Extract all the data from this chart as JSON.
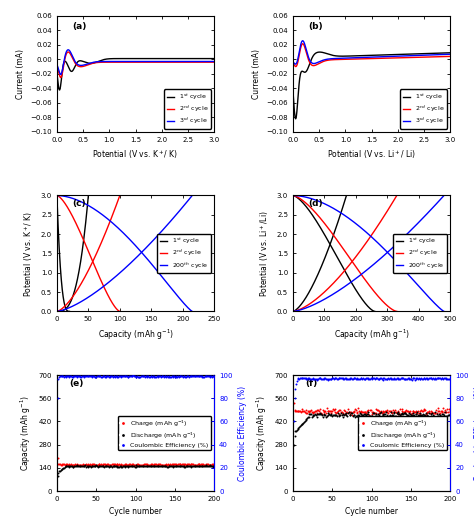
{
  "fig_width": 4.74,
  "fig_height": 5.28,
  "dpi": 100,
  "cv_a": {
    "xlabel": "Potential (V vs. K$^+$/ K)",
    "ylabel": "Current (mA)",
    "xlim": [
      0,
      3.0
    ],
    "ylim": [
      -0.1,
      0.06
    ],
    "yticks": [
      -0.1,
      -0.08,
      -0.06,
      -0.04,
      -0.02,
      0.0,
      0.02,
      0.04,
      0.06
    ],
    "xticks": [
      0.0,
      0.5,
      1.0,
      1.5,
      2.0,
      2.5,
      3.0
    ]
  },
  "cv_b": {
    "xlabel": "Potential (V vs. Li$^+$/ Li)",
    "ylabel": "Current (mA)",
    "xlim": [
      0,
      3.0
    ],
    "ylim": [
      -0.1,
      0.06
    ],
    "yticks": [
      -0.1,
      -0.08,
      -0.06,
      -0.04,
      -0.02,
      0.0,
      0.02,
      0.04,
      0.06
    ],
    "xticks": [
      0.0,
      0.5,
      1.0,
      1.5,
      2.0,
      2.5,
      3.0
    ]
  },
  "gcd_c": {
    "xlabel": "Capacity (mAh g$^{-1}$)",
    "ylabel": "Potential (V vs. K$^+$/ K)",
    "xlim": [
      0,
      250
    ],
    "ylim": [
      0,
      3.0
    ],
    "xticks": [
      0,
      50,
      100,
      150,
      200,
      250
    ],
    "yticks": [
      0.0,
      0.5,
      1.0,
      1.5,
      2.0,
      2.5,
      3.0
    ]
  },
  "gcd_d": {
    "xlabel": "Capacity (mAh g$^{-1}$)",
    "ylabel": "Potential (V vs. Li$^+$/Li)",
    "xlim": [
      0,
      500
    ],
    "ylim": [
      0,
      3.0
    ],
    "xticks": [
      0,
      100,
      200,
      300,
      400,
      500
    ],
    "yticks": [
      0.0,
      0.5,
      1.0,
      1.5,
      2.0,
      2.5,
      3.0
    ]
  },
  "cycle_e": {
    "xlabel": "Cycle number",
    "ylabel_left": "Capacity (mAh g$^{-1}$)",
    "ylabel_right": "Coulombic Efficiency (%)",
    "xlim": [
      0,
      200
    ],
    "ylim_left": [
      0,
      700
    ],
    "ylim_right": [
      0,
      100
    ],
    "yticks_left": [
      0,
      140,
      280,
      420,
      560,
      700
    ],
    "yticks_right": [
      0,
      20,
      40,
      60,
      80,
      100
    ],
    "xticks": [
      0,
      50,
      100,
      150,
      200
    ]
  },
  "cycle_f": {
    "xlabel": "Cycle number",
    "ylabel_left": "Capacity (mAh g$^{-1}$)",
    "ylabel_right": "Coulombic Efficiency (%)",
    "xlim": [
      0,
      200
    ],
    "ylim_left": [
      0,
      700
    ],
    "ylim_right": [
      0,
      100
    ],
    "yticks_left": [
      0,
      140,
      280,
      420,
      560,
      700
    ],
    "yticks_right": [
      0,
      20,
      40,
      60,
      80,
      100
    ],
    "xticks": [
      0,
      50,
      100,
      150,
      200
    ]
  }
}
